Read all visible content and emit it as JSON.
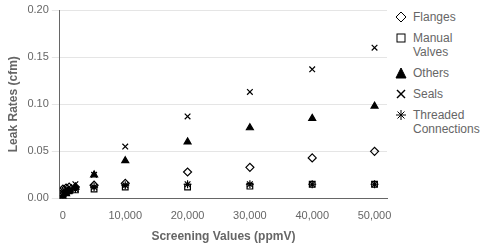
{
  "chart_data": {
    "type": "scatter",
    "x": [
      0,
      500,
      1000,
      2000,
      5000,
      10000,
      20000,
      30000,
      40000,
      50000
    ],
    "series": [
      {
        "name": "Flanges",
        "marker": "open_diamond",
        "values": [
          0.01,
          0.011,
          0.012,
          0.012,
          0.014,
          0.016,
          0.028,
          0.033,
          0.043,
          0.05
        ]
      },
      {
        "name": "Manual\nValves",
        "marker": "open_square",
        "values": [
          0.005,
          0.007,
          0.008,
          0.009,
          0.01,
          0.012,
          0.012,
          0.013,
          0.015,
          0.015
        ]
      },
      {
        "name": "Others",
        "marker": "triangle",
        "values": [
          0.002,
          0.005,
          0.008,
          0.012,
          0.025,
          0.04,
          0.06,
          0.075,
          0.085,
          0.098
        ]
      },
      {
        "name": "Seals",
        "marker": "x",
        "values": [
          0.008,
          0.01,
          0.012,
          0.015,
          0.025,
          0.055,
          0.087,
          0.113,
          0.137,
          0.16
        ]
      },
      {
        "name": "Threaded\nConnections",
        "marker": "star",
        "values": [
          0.003,
          0.006,
          0.008,
          0.01,
          0.012,
          0.014,
          0.015,
          0.015,
          0.015,
          0.015
        ]
      }
    ],
    "color": "black",
    "xlabel": "Screening Values (ppmV)",
    "ylabel": "Leak Rates (cfm)",
    "xlim": [
      -500,
      52000
    ],
    "ylim": [
      0.0,
      0.2
    ],
    "xticks": [
      0,
      {
        "value": 10000,
        "label": "10,000"
      },
      {
        "value": 20000,
        "label": "20,000"
      },
      {
        "value": 30000,
        "label": "30,000"
      },
      {
        "value": 40000,
        "label": "40,000"
      },
      {
        "value": 50000,
        "label": "50,000"
      }
    ],
    "yticks": [
      {
        "value": 0,
        "label": "0.00"
      },
      0.05,
      {
        "value": 0.1,
        "label": "0.10"
      },
      0.15,
      {
        "value": 0.2,
        "label": "0.20"
      }
    ],
    "grid": "y",
    "legend": "right"
  }
}
